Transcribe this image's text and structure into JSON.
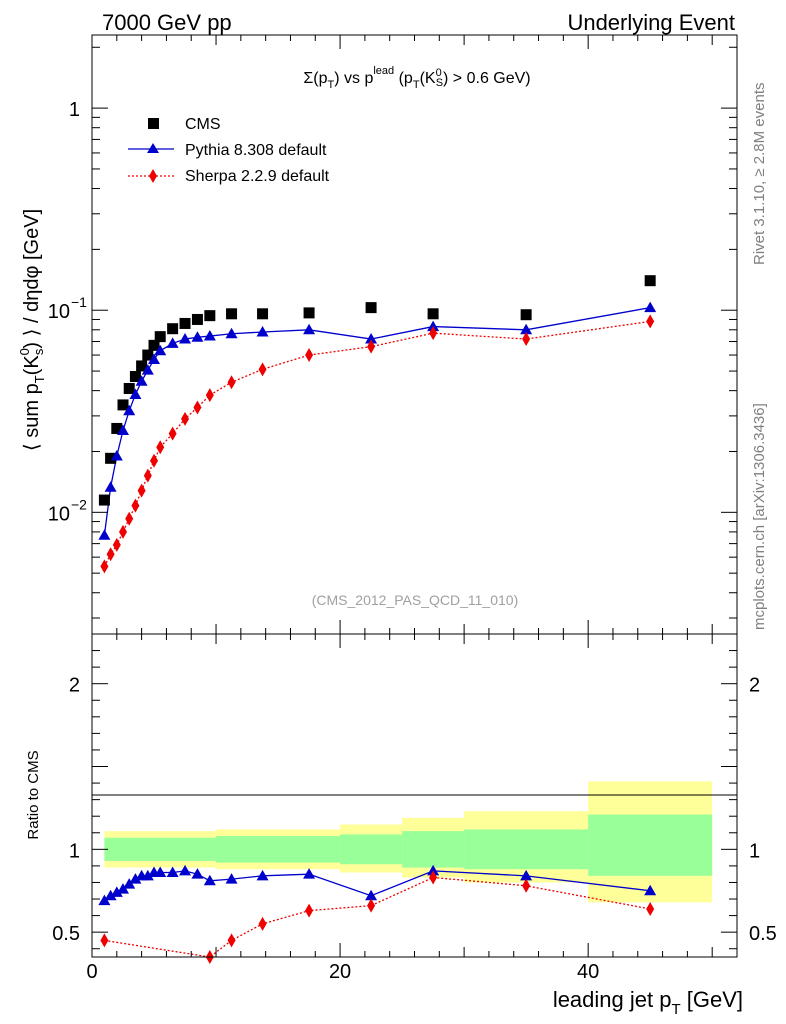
{
  "header": {
    "left": "7000 GeV pp",
    "right": "Underlying Event"
  },
  "side_labels": {
    "rivet": "Rivet 3.1.10, ≥ 2.8M events",
    "mcplots": "mcplots.cern.ch [arXiv:1306.3436]"
  },
  "chart_data": {
    "type": "scatter",
    "title": "Σ(p_T) vs p_T^lead (p_T(K_S^0) > 0.6 GeV)",
    "title_parts": {
      "sigma": "Σ(p",
      "t_sub": "T",
      "vs": ") vs p",
      "lead_sup": "lead",
      "paren": " (p",
      "paren_t": "T",
      "k": "(K",
      "k_sup": "0",
      "k_sub": "S",
      "tail": ") > 0.6 GeV)"
    },
    "analysis_tag": "(CMS_2012_PAS_QCD_11_010)",
    "xlabel": "leading jet p_T [GeV]",
    "xlabel_parts": {
      "main": "leading jet p",
      "sub": "T",
      "unit": " [GeV]"
    },
    "ylabel": "⟨ sum p_T(K_s^0) ⟩ / dηdφ [GeV]",
    "ylabel_parts": {
      "a": "⟨ sum p",
      "a_sub": "T",
      "b": "(K",
      "b_sup": "0",
      "b_sub": "s",
      "c": ") ⟩ / dηdφ [GeV]"
    },
    "ratio_ylabel": "Ratio to CMS",
    "xlim": [
      0,
      52
    ],
    "ylim": [
      0.0025,
      2.3
    ],
    "y_scale": "log",
    "ratio_ylim": [
      0.35,
      2.3
    ],
    "x_ticks": [
      0,
      20,
      40
    ],
    "x_tick_labels": [
      "0",
      "20",
      "40"
    ],
    "y_tick_labels": [
      {
        "value": 1,
        "base": "1",
        "exp": ""
      },
      {
        "value": 0.1,
        "base": "10",
        "exp": "−1"
      },
      {
        "value": 0.01,
        "base": "10",
        "exp": "−2"
      }
    ],
    "ratio_ticks": [
      0.5,
      1,
      2
    ],
    "ratio_tick_labels": [
      "0.5",
      "1",
      "2"
    ],
    "legend_position": "top-left",
    "colors": {
      "cms": "#000000",
      "pythia": "#0000cc",
      "sherpa": "#ee0000",
      "band_inner": "#99ff99",
      "band_outer": "#ffff99"
    },
    "series": [
      {
        "name": "CMS",
        "marker": "square",
        "x": [
          1.0,
          1.5,
          2.0,
          2.5,
          3.0,
          3.5,
          4.0,
          4.5,
          5.0,
          5.5,
          6.5,
          7.5,
          8.5,
          9.5,
          11.25,
          13.75,
          17.5,
          22.5,
          27.5,
          35.0,
          45.0
        ],
        "y": [
          0.0115,
          0.0185,
          0.026,
          0.034,
          0.041,
          0.047,
          0.053,
          0.06,
          0.067,
          0.074,
          0.081,
          0.086,
          0.09,
          0.094,
          0.096,
          0.096,
          0.097,
          0.103,
          0.096,
          0.095,
          0.14
        ]
      },
      {
        "name": "Pythia 8.308 default",
        "marker": "triangle",
        "line": "solid",
        "x": [
          1.0,
          1.5,
          2.0,
          2.5,
          3.0,
          3.5,
          4.0,
          4.5,
          5.0,
          5.5,
          6.5,
          7.5,
          8.5,
          9.5,
          11.25,
          13.75,
          17.5,
          22.5,
          27.5,
          35.0,
          45.0
        ],
        "y": [
          0.0077,
          0.0133,
          0.019,
          0.0254,
          0.0318,
          0.0383,
          0.0445,
          0.0505,
          0.057,
          0.063,
          0.0685,
          0.072,
          0.0735,
          0.0745,
          0.0765,
          0.078,
          0.08,
          0.072,
          0.083,
          0.08,
          0.103
        ]
      },
      {
        "name": "Sherpa 2.2.9 default",
        "marker": "diamond",
        "line": "dotted",
        "x": [
          1.0,
          1.5,
          2.0,
          2.5,
          3.0,
          3.5,
          4.0,
          4.5,
          5.0,
          5.5,
          6.5,
          7.5,
          8.5,
          9.5,
          11.25,
          13.75,
          17.5,
          22.5,
          27.5,
          35.0,
          45.0
        ],
        "y": [
          0.0054,
          0.0062,
          0.0069,
          0.008,
          0.0093,
          0.0108,
          0.0128,
          0.0152,
          0.018,
          0.021,
          0.0245,
          0.029,
          0.033,
          0.038,
          0.044,
          0.051,
          0.06,
          0.066,
          0.077,
          0.072,
          0.088
        ]
      }
    ],
    "ratio_series": [
      {
        "name": "Pythia 8.308 default",
        "x": [
          1.0,
          1.5,
          2.0,
          2.5,
          3.0,
          3.5,
          4.0,
          4.5,
          5.0,
          5.5,
          6.5,
          7.5,
          8.5,
          9.5,
          11.25,
          13.75,
          17.5,
          22.5,
          27.5,
          35.0,
          45.0
        ],
        "y": [
          0.69,
          0.72,
          0.74,
          0.76,
          0.79,
          0.82,
          0.84,
          0.84,
          0.86,
          0.86,
          0.86,
          0.87,
          0.85,
          0.81,
          0.82,
          0.84,
          0.85,
          0.72,
          0.87,
          0.84,
          0.75
        ]
      },
      {
        "name": "Sherpa 2.2.9 default",
        "x": [
          1.0,
          9.5,
          11.25,
          13.75,
          17.5,
          22.5,
          27.5,
          35.0,
          45.0
        ],
        "y": [
          0.45,
          0.35,
          0.45,
          0.55,
          0.63,
          0.66,
          0.83,
          0.78,
          0.64
        ]
      }
    ],
    "ratio_bands": [
      {
        "x0": 1.0,
        "x1": 5.0,
        "inner": [
          0.93,
          1.07
        ],
        "outer": [
          0.89,
          1.11
        ]
      },
      {
        "x0": 5.0,
        "x1": 10.0,
        "inner": [
          0.93,
          1.07
        ],
        "outer": [
          0.89,
          1.11
        ]
      },
      {
        "x0": 10.0,
        "x1": 20.0,
        "inner": [
          0.92,
          1.08
        ],
        "outer": [
          0.88,
          1.12
        ]
      },
      {
        "x0": 20.0,
        "x1": 25.0,
        "inner": [
          0.91,
          1.09
        ],
        "outer": [
          0.86,
          1.15
        ]
      },
      {
        "x0": 25.0,
        "x1": 30.0,
        "inner": [
          0.89,
          1.11
        ],
        "outer": [
          0.83,
          1.19
        ]
      },
      {
        "x0": 30.0,
        "x1": 40.0,
        "inner": [
          0.88,
          1.12
        ],
        "outer": [
          0.8,
          1.23
        ]
      },
      {
        "x0": 40.0,
        "x1": 50.0,
        "inner": [
          0.84,
          1.21
        ],
        "outer": [
          0.68,
          1.41
        ]
      }
    ]
  }
}
